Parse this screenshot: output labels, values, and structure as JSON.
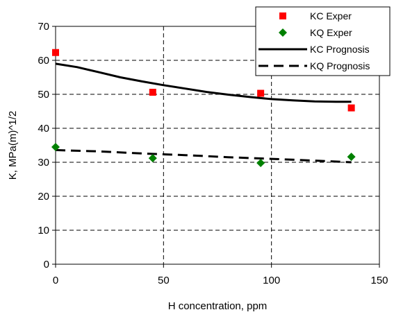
{
  "chart_data": {
    "type": "scatter",
    "title": "",
    "xlabel": "H concentration, ppm",
    "ylabel": "K, MPa(m)^1/2",
    "xlim": [
      0,
      150
    ],
    "ylim": [
      0,
      70
    ],
    "x_ticks": [
      "0",
      "50",
      "100",
      "150"
    ],
    "y_ticks": [
      "0",
      "10",
      "20",
      "30",
      "40",
      "50",
      "60",
      "70"
    ],
    "x_tick_values": [
      0,
      50,
      100,
      150
    ],
    "y_tick_values": [
      0,
      10,
      20,
      30,
      40,
      50,
      60,
      70
    ],
    "grid": true,
    "legend_position": "top-right",
    "series": [
      {
        "name": "KC Exper",
        "kind": "marker",
        "marker": "square",
        "color": "#ff0000",
        "points": [
          [
            0,
            62.3
          ],
          [
            45,
            50.6
          ],
          [
            95,
            50.3
          ],
          [
            137,
            46.0
          ]
        ]
      },
      {
        "name": "KQ Exper",
        "kind": "marker",
        "marker": "diamond",
        "color": "#008000",
        "points": [
          [
            0,
            34.5
          ],
          [
            45,
            31.2
          ],
          [
            95,
            29.8
          ],
          [
            137,
            31.6
          ]
        ]
      },
      {
        "name": "KC Prognosis",
        "kind": "line",
        "style": "solid",
        "color": "#000000",
        "points": [
          [
            0,
            59.0
          ],
          [
            10,
            58.0
          ],
          [
            20,
            56.5
          ],
          [
            30,
            55.0
          ],
          [
            40,
            53.8
          ],
          [
            50,
            52.7
          ],
          [
            60,
            51.7
          ],
          [
            70,
            50.7
          ],
          [
            80,
            49.9
          ],
          [
            90,
            49.2
          ],
          [
            100,
            48.6
          ],
          [
            110,
            48.2
          ],
          [
            120,
            47.9
          ],
          [
            130,
            47.8
          ],
          [
            137,
            47.8
          ]
        ]
      },
      {
        "name": "KQ Prognosis",
        "kind": "line",
        "style": "dashed",
        "color": "#000000",
        "points": [
          [
            0,
            33.6
          ],
          [
            20,
            33.2
          ],
          [
            40,
            32.6
          ],
          [
            60,
            32.1
          ],
          [
            80,
            31.5
          ],
          [
            100,
            31.0
          ],
          [
            120,
            30.5
          ],
          [
            137,
            30.0
          ]
        ]
      }
    ]
  }
}
